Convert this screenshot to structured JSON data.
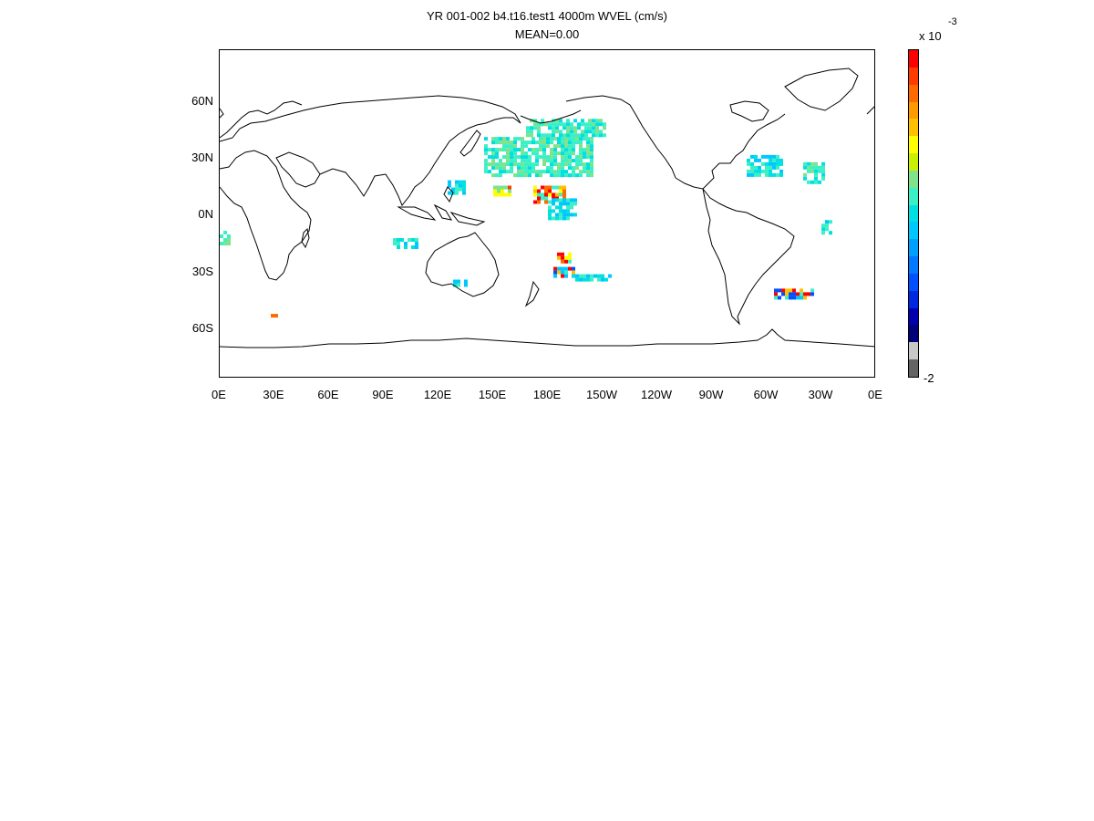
{
  "title": {
    "line1": "YR 001-002 b4.t16.test1 4000m WVEL (cm/s)",
    "line2": "MEAN=0.00"
  },
  "axes": {
    "lat_ticks": [
      "60N",
      "30N",
      "0N",
      "30S",
      "60S"
    ],
    "lon_ticks": [
      "0E",
      "30E",
      "60E",
      "90E",
      "120E",
      "150E",
      "180E",
      "150W",
      "120W",
      "90W",
      "60W",
      "30W",
      "0E"
    ]
  },
  "colorbar": {
    "scale_label": "x 10",
    "exponent": "-3",
    "min_label": "-2",
    "colors": [
      "#ff0000",
      "#ff3b00",
      "#ff6a00",
      "#ff9a00",
      "#ffc000",
      "#ffff00",
      "#c8f000",
      "#7ee38b",
      "#3cf0c6",
      "#00e0e0",
      "#00c8ff",
      "#00a0ff",
      "#0078ff",
      "#0050ff",
      "#0028e0",
      "#0000b0",
      "#000078",
      "#c8c8c8",
      "#646464"
    ]
  },
  "chart_data": {
    "type": "heatmap",
    "title": "YR 001-002 b4.t16.test1 4000m WVEL (cm/s)",
    "subtitle": "MEAN=0.00",
    "xlabel": "",
    "ylabel": "",
    "x_range_deg_east": [
      0,
      360
    ],
    "y_range_deg_north": [
      -90,
      90
    ],
    "x_ticks": [
      "0E",
      "30E",
      "60E",
      "90E",
      "120E",
      "150E",
      "180E",
      "150W",
      "120W",
      "90W",
      "60W",
      "30W",
      "0E"
    ],
    "y_ticks": [
      "60N",
      "30N",
      "0N",
      "30S",
      "60S"
    ],
    "colorbar_multiplier": "x 10^-3",
    "regions": [
      {
        "lon": [
          145,
          205
        ],
        "lat": [
          20,
          42
        ],
        "value_class": "cyan-green"
      },
      {
        "lon": [
          168,
          212
        ],
        "lat": [
          42,
          52
        ],
        "value_class": "cyan-green"
      },
      {
        "lon": [
          125,
          135
        ],
        "lat": [
          10,
          18
        ],
        "value_class": "cyan"
      },
      {
        "lon": [
          150,
          160
        ],
        "lat": [
          10,
          15
        ],
        "value_class": "yellow-red"
      },
      {
        "lon": [
          172,
          190
        ],
        "lat": [
          5,
          15
        ],
        "value_class": "red-yellow"
      },
      {
        "lon": [
          180,
          195
        ],
        "lat": [
          -3,
          8
        ],
        "value_class": "cyan"
      },
      {
        "lon": [
          185,
          192
        ],
        "lat": [
          -28,
          -22
        ],
        "value_class": "red-yellow"
      },
      {
        "lon": [
          183,
          195
        ],
        "lat": [
          -35,
          -30
        ],
        "value_class": "red-blue"
      },
      {
        "lon": [
          193,
          215
        ],
        "lat": [
          -38,
          -34
        ],
        "value_class": "cyan"
      },
      {
        "lon": [
          95,
          108
        ],
        "lat": [
          -20,
          -14
        ],
        "value_class": "cyan"
      },
      {
        "lon": [
          128,
          135
        ],
        "lat": [
          -40,
          -37
        ],
        "value_class": "cyan"
      },
      {
        "lon": [
          0,
          5
        ],
        "lat": [
          -18,
          -10
        ],
        "value_class": "cyan-green"
      },
      {
        "lon": [
          28,
          32
        ],
        "lat": [
          -58,
          -56
        ],
        "value_class": "red-yellow"
      },
      {
        "lon": [
          289,
          308
        ],
        "lat": [
          20,
          32
        ],
        "value_class": "cyan"
      },
      {
        "lon": [
          320,
          331
        ],
        "lat": [
          16,
          28
        ],
        "value_class": "cyan-green"
      },
      {
        "lon": [
          330,
          335
        ],
        "lat": [
          -12,
          -4
        ],
        "value_class": "cyan"
      },
      {
        "lon": [
          304,
          326
        ],
        "lat": [
          -48,
          -42
        ],
        "value_class": "red-blue"
      }
    ]
  }
}
